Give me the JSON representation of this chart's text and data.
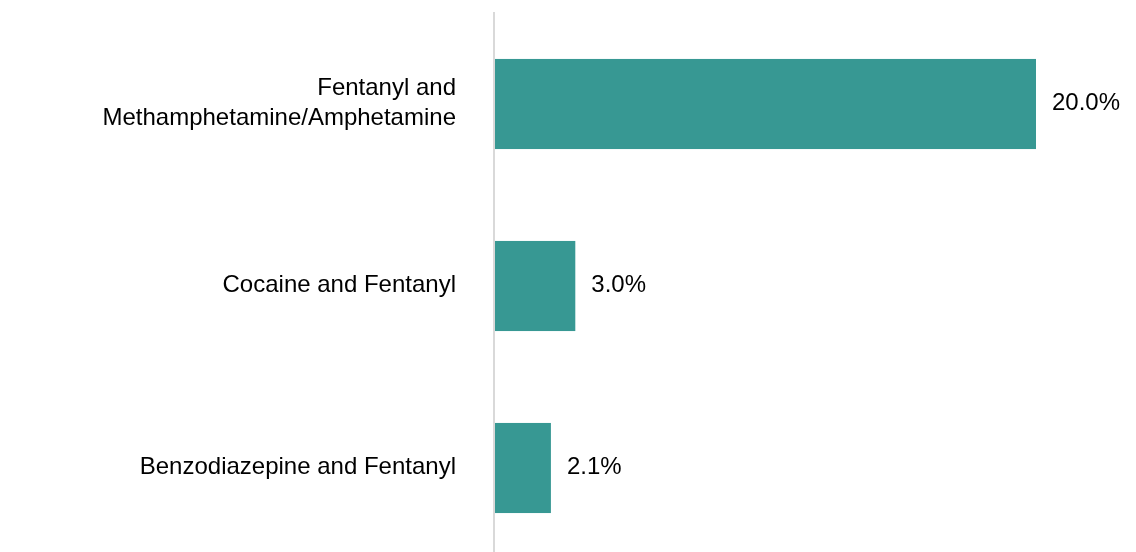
{
  "chart_data": {
    "type": "bar",
    "orientation": "horizontal",
    "categories": [
      "Fentanyl and Methamphetamine/Amphetamine",
      "Cocaine and Fentanyl",
      "Benzodiazepine and Fentanyl"
    ],
    "values": [
      20.0,
      3.0,
      2.1
    ],
    "color": "#379893",
    "value_labels": [
      "20.0%",
      "3.0%",
      "2.1%"
    ]
  }
}
